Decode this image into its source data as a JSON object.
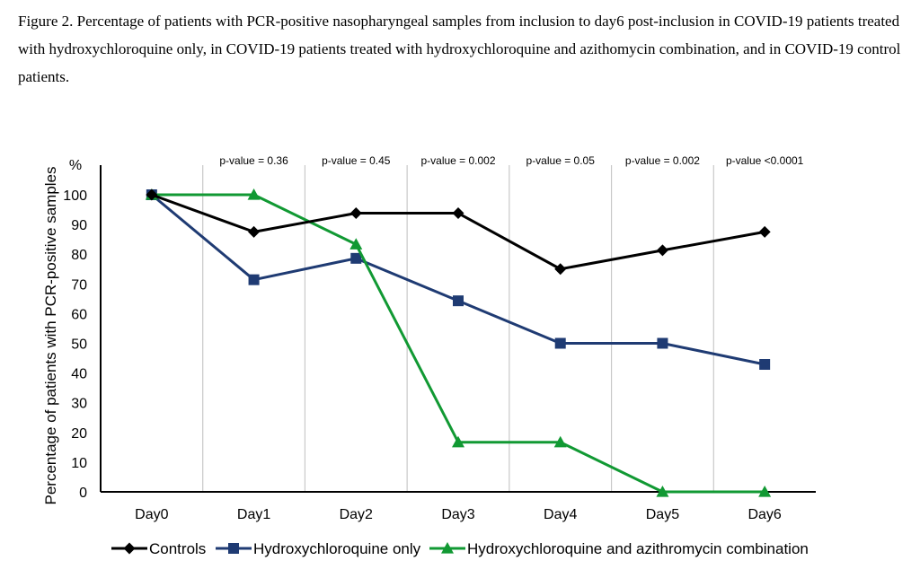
{
  "caption": "Figure 2. Percentage of patients with PCR-positive nasopharyngeal samples from inclusion to day6 post-inclusion in COVID-19 patients treated with hydroxychloroquine only, in COVID-19 patients treated with hydroxychloroquine and azithomycin combination, and in COVID-19 control patients.",
  "chart_data": {
    "type": "line",
    "unit_label": "%",
    "ylabel": "Percentage of patients with PCR-positive samples",
    "xlabel": "",
    "ylim": [
      0,
      100
    ],
    "yticks": [
      0,
      10,
      20,
      30,
      40,
      50,
      60,
      70,
      80,
      90,
      100
    ],
    "categories": [
      "Day0",
      "Day1",
      "Day2",
      "Day3",
      "Day4",
      "Day5",
      "Day6"
    ],
    "p_values": [
      "p-value = 0.36",
      "p-value = 0.45",
      "p-value = 0.002",
      "p-value = 0.05",
      "p-value = 0.002",
      "p-value <0.0001"
    ],
    "grid": "vertical",
    "legend_position": "bottom",
    "series": [
      {
        "name": "Controls",
        "color": "#000000",
        "marker": "diamond",
        "values": [
          100,
          87.5,
          93.8,
          93.8,
          75,
          81.3,
          87.5
        ]
      },
      {
        "name": "Hydroxychloroquine only",
        "color": "#1f3b73",
        "marker": "square",
        "values": [
          100,
          71.4,
          78.6,
          64.3,
          50,
          50,
          42.9
        ]
      },
      {
        "name": "Hydroxychloroquine and azithromycin combination",
        "color": "#119933",
        "marker": "triangle",
        "values": [
          100,
          100,
          83.3,
          16.7,
          16.7,
          0,
          0
        ]
      }
    ]
  }
}
